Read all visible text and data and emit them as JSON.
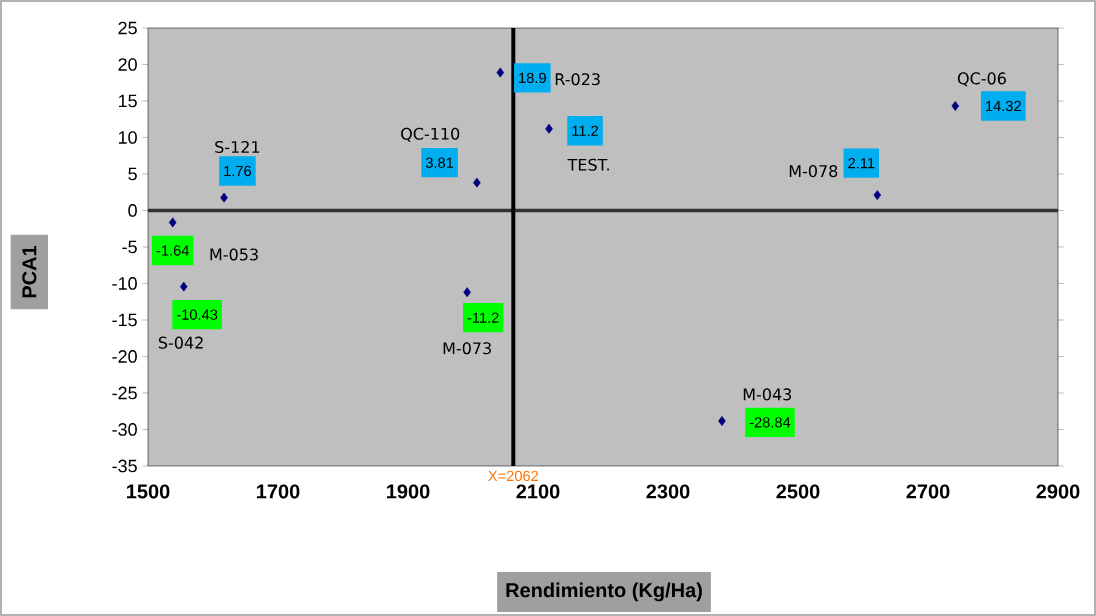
{
  "chart_data": {
    "type": "scatter",
    "xlabel": "Rendimiento (Kg/Ha)",
    "ylabel": "PCA1",
    "xlim": [
      1500,
      2900
    ],
    "xticks": [
      1500,
      1700,
      1900,
      2100,
      2300,
      2500,
      2700,
      2900
    ],
    "ylim": [
      -35,
      25
    ],
    "yticks": [
      -35,
      -30,
      -25,
      -20,
      -15,
      -10,
      -5,
      0,
      5,
      10,
      15,
      20,
      25
    ],
    "marker": "diamond",
    "grid": false,
    "series": [
      {
        "color": "#000080",
        "x": [
          1538,
          1555,
          1617,
          1991,
          2006,
          2042,
          2117,
          2383,
          2622,
          2742
        ],
        "values": [
          -1.64,
          -10.43,
          1.76,
          -11.2,
          3.81,
          18.9,
          11.2,
          -28.84,
          2.11,
          14.32
        ],
        "value_labels": [
          "-1.64",
          "-10.43",
          "1.76",
          "-11.2",
          "3.81",
          "18.9",
          "11.2",
          "-28.84",
          "2.11",
          "14.32"
        ]
      }
    ],
    "annotations": [
      {
        "text": "M-053",
        "x": 1538,
        "y": -1.64
      },
      "S-042",
      {
        "text": "S-121",
        "x": 1617,
        "y": 1.76
      },
      "M-073",
      {
        "text": "QC-110",
        "x": 2006,
        "y": 3.81
      },
      "R-023",
      {
        "text": "TEST.",
        "x": 2117,
        "y": 11.2
      },
      {
        "text": "M-043",
        "x": 2383,
        "y": -28.84
      },
      {
        "text": "M-078",
        "x": 2622,
        "y": 2.11
      },
      {
        "text": "QC-06",
        "x": 2742,
        "y": 14.32
      }
    ],
    "ref_lines": [
      {
        "axis": "y",
        "value": 0,
        "color": "#333333"
      },
      {
        "axis": "x",
        "value": 2062,
        "label": "X=2062",
        "color": "#000000"
      }
    ]
  }
}
